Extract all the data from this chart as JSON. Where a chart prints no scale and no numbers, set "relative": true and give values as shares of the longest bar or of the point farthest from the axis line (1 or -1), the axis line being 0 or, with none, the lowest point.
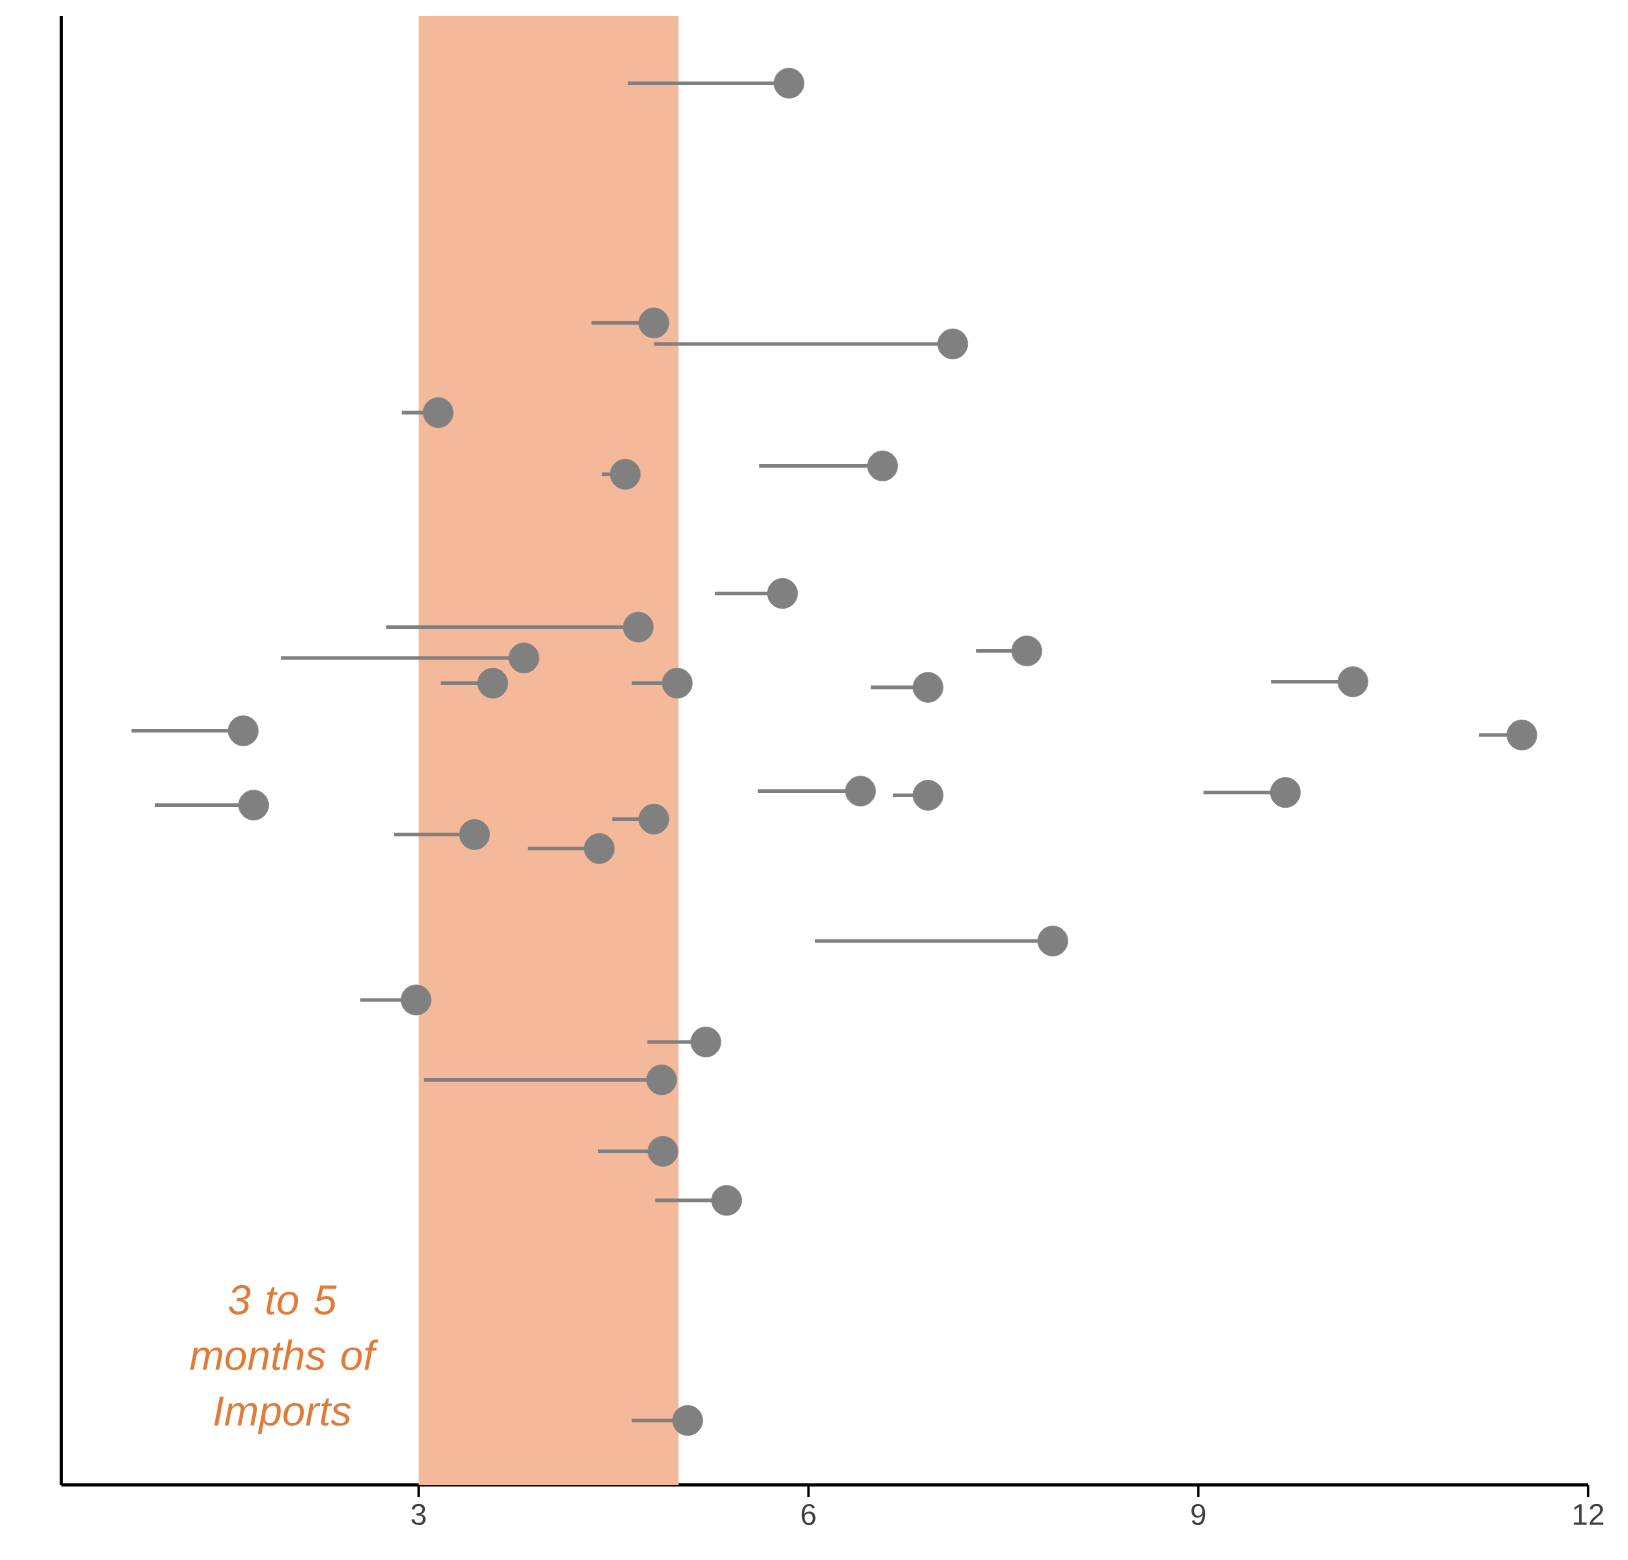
{
  "chart_data": {
    "type": "scatter",
    "relative": true,
    "xlim": [
      0.25,
      12
    ],
    "xticks": [
      3,
      6,
      9,
      12
    ],
    "grid": false,
    "marker": "circle",
    "bands": [
      {
        "axis": "x",
        "from": 3,
        "to": 5,
        "label": "*3 to 5 months of Imports*",
        "color": "#f4b99b"
      }
    ],
    "series": [
      {
        "color": "#808080",
        "x": [
          5.85,
          4.81,
          7.11,
          3.15,
          4.59,
          6.57,
          5.8,
          4.69,
          3.81,
          7.68,
          3.57,
          4.99,
          6.92,
          10.19,
          1.65,
          11.49,
          1.73,
          6.4,
          6.92,
          9.67,
          3.43,
          4.81,
          4.39,
          7.88,
          2.98,
          5.21,
          4.87,
          4.88,
          5.37,
          5.07
        ],
        "values": [
          1.0,
          0.829,
          0.814,
          0.765,
          0.721,
          0.727,
          0.636,
          0.612,
          0.59,
          0.595,
          0.572,
          0.572,
          0.569,
          0.573,
          0.538,
          0.535,
          0.485,
          0.495,
          0.492,
          0.494,
          0.464,
          0.475,
          0.454,
          0.388,
          0.346,
          0.316,
          0.289,
          0.238,
          0.203,
          0.046
        ],
        "xerrors": [
          [
            4.61,
            5.85
          ],
          [
            4.33,
            4.81
          ],
          [
            4.81,
            7.11
          ],
          [
            2.87,
            3.15
          ],
          [
            4.41,
            4.59
          ],
          [
            5.62,
            6.57
          ],
          [
            5.28,
            5.8
          ],
          [
            2.75,
            4.69
          ],
          [
            1.94,
            3.81
          ],
          [
            7.29,
            7.68
          ],
          [
            3.17,
            3.57
          ],
          [
            4.64,
            4.99
          ],
          [
            6.48,
            6.92
          ],
          [
            9.56,
            10.19
          ],
          [
            0.79,
            1.65
          ],
          [
            11.16,
            11.49
          ],
          [
            0.97,
            1.73
          ],
          [
            5.61,
            6.4
          ],
          [
            6.65,
            6.92
          ],
          [
            9.04,
            9.67
          ],
          [
            2.81,
            3.43
          ],
          [
            4.49,
            4.81
          ],
          [
            3.84,
            4.39
          ],
          [
            6.05,
            7.88
          ],
          [
            2.55,
            2.98
          ],
          [
            4.76,
            5.21
          ],
          [
            3.04,
            4.87
          ],
          [
            4.38,
            4.88
          ],
          [
            4.82,
            5.37
          ],
          [
            4.64,
            5.07
          ]
        ]
      }
    ]
  }
}
